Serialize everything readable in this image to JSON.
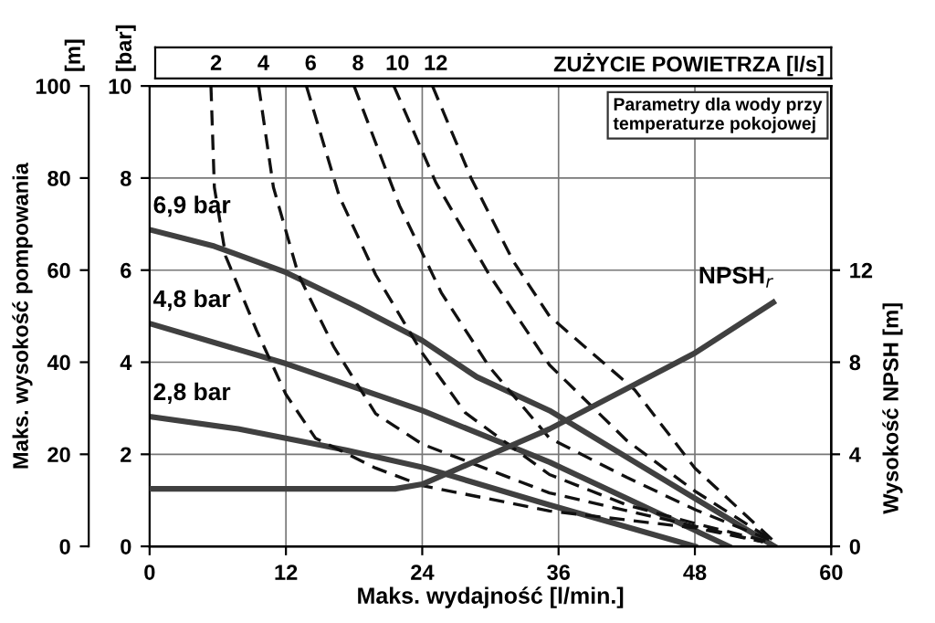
{
  "chart_data": {
    "type": "line",
    "xlabel": "Maks. wydajność [l/min.]",
    "ylabel": "Maks. wysokość pompowania",
    "y2label": "Wysokość NPSH [m]",
    "y3label": "[m]",
    "x2label": "ZUŻYCIE POWIETRZA [l/s]",
    "xlim": [
      0,
      60
    ],
    "xticks": [
      0,
      12,
      24,
      36,
      48,
      60
    ],
    "ylim": [
      0,
      10
    ],
    "yticks": [
      0,
      2,
      4,
      6,
      8,
      10
    ],
    "y3lim": [
      0,
      100
    ],
    "y3ticks": [
      0,
      20,
      40,
      60,
      80,
      100
    ],
    "y2lim": [
      0,
      20
    ],
    "y2ticks": [
      0,
      4,
      8,
      12
    ],
    "grid": true,
    "legend": false,
    "annotations": [
      "Parametry dla wody przy temperaturze pokojowej",
      "[bar]"
    ],
    "series": [
      {
        "name": "6,9 bar",
        "color": "#404040",
        "line_style": "solid",
        "x": [
          0,
          5.7,
          12,
          18.3,
          24,
          28.8,
          35.2,
          55
        ],
        "values": [
          6.88,
          6.52,
          5.95,
          5.2,
          4.47,
          3.68,
          2.95,
          0
        ]
      },
      {
        "name": "4,8 bar",
        "color": "#404040",
        "line_style": "solid",
        "x": [
          0,
          12,
          24,
          35.2,
          51
        ],
        "values": [
          4.84,
          3.97,
          2.95,
          1.83,
          0
        ]
      },
      {
        "name": "2,8 bar",
        "color": "#404040",
        "line_style": "solid",
        "x": [
          0,
          7.8,
          17.3,
          24,
          35.2,
          48
        ],
        "values": [
          2.82,
          2.55,
          2.09,
          1.72,
          0.9,
          0
        ]
      },
      {
        "name": "NPSH$_{r}$",
        "axis": "y2",
        "color": "#404040",
        "line_style": "solid",
        "x": [
          0,
          21.6,
          24,
          35.2,
          48,
          54.9
        ],
        "values": [
          2.5,
          2.5,
          2.7,
          5.1,
          8.4,
          10.6
        ]
      },
      {
        "name": "2",
        "color": "#111111",
        "line_style": "dashed",
        "x": [
          5.4,
          5.7,
          6.7,
          9.4,
          12,
          14.6,
          19.9,
          24,
          35.2,
          48,
          54
        ],
        "values": [
          10,
          7.8,
          6.3,
          4.7,
          3.3,
          2.35,
          1.7,
          1.32,
          0.77,
          0.4,
          0.1
        ]
      },
      {
        "name": "4",
        "color": "#111111",
        "line_style": "dashed",
        "x": [
          9.6,
          10.9,
          13.1,
          16.2,
          19.9,
          24,
          35.2,
          54
        ],
        "values": [
          10,
          7.8,
          5.9,
          4.34,
          2.88,
          2.22,
          1.16,
          0.1
        ]
      },
      {
        "name": "6",
        "color": "#111111",
        "line_style": "dashed",
        "x": [
          13.8,
          16.7,
          19.9,
          24,
          27.8,
          35.2,
          42,
          48,
          54.5
        ],
        "values": [
          10,
          7.6,
          5.9,
          4.2,
          2.9,
          1.56,
          0.9,
          0.5,
          0.1
        ]
      },
      {
        "name": "8",
        "color": "#111111",
        "line_style": "dashed",
        "x": [
          18,
          22,
          25.7,
          29.9,
          35.2,
          42,
          48,
          55
        ],
        "values": [
          10,
          7.4,
          5.5,
          3.9,
          2.35,
          1.5,
          0.8,
          0.1
        ]
      },
      {
        "name": "10",
        "color": "#111111",
        "line_style": "dashed",
        "x": [
          21.5,
          25.2,
          29.9,
          35.2,
          42,
          48,
          55
        ],
        "values": [
          10,
          7.9,
          5.9,
          3.94,
          2.3,
          1.2,
          0.1
        ]
      },
      {
        "name": "12",
        "color": "#111111",
        "line_style": "dashed",
        "x": [
          24.9,
          28.3,
          32,
          35.2,
          42.7,
          48,
          55
        ],
        "values": [
          10,
          8,
          6.2,
          5,
          3.4,
          1.7,
          0.1
        ]
      }
    ]
  }
}
